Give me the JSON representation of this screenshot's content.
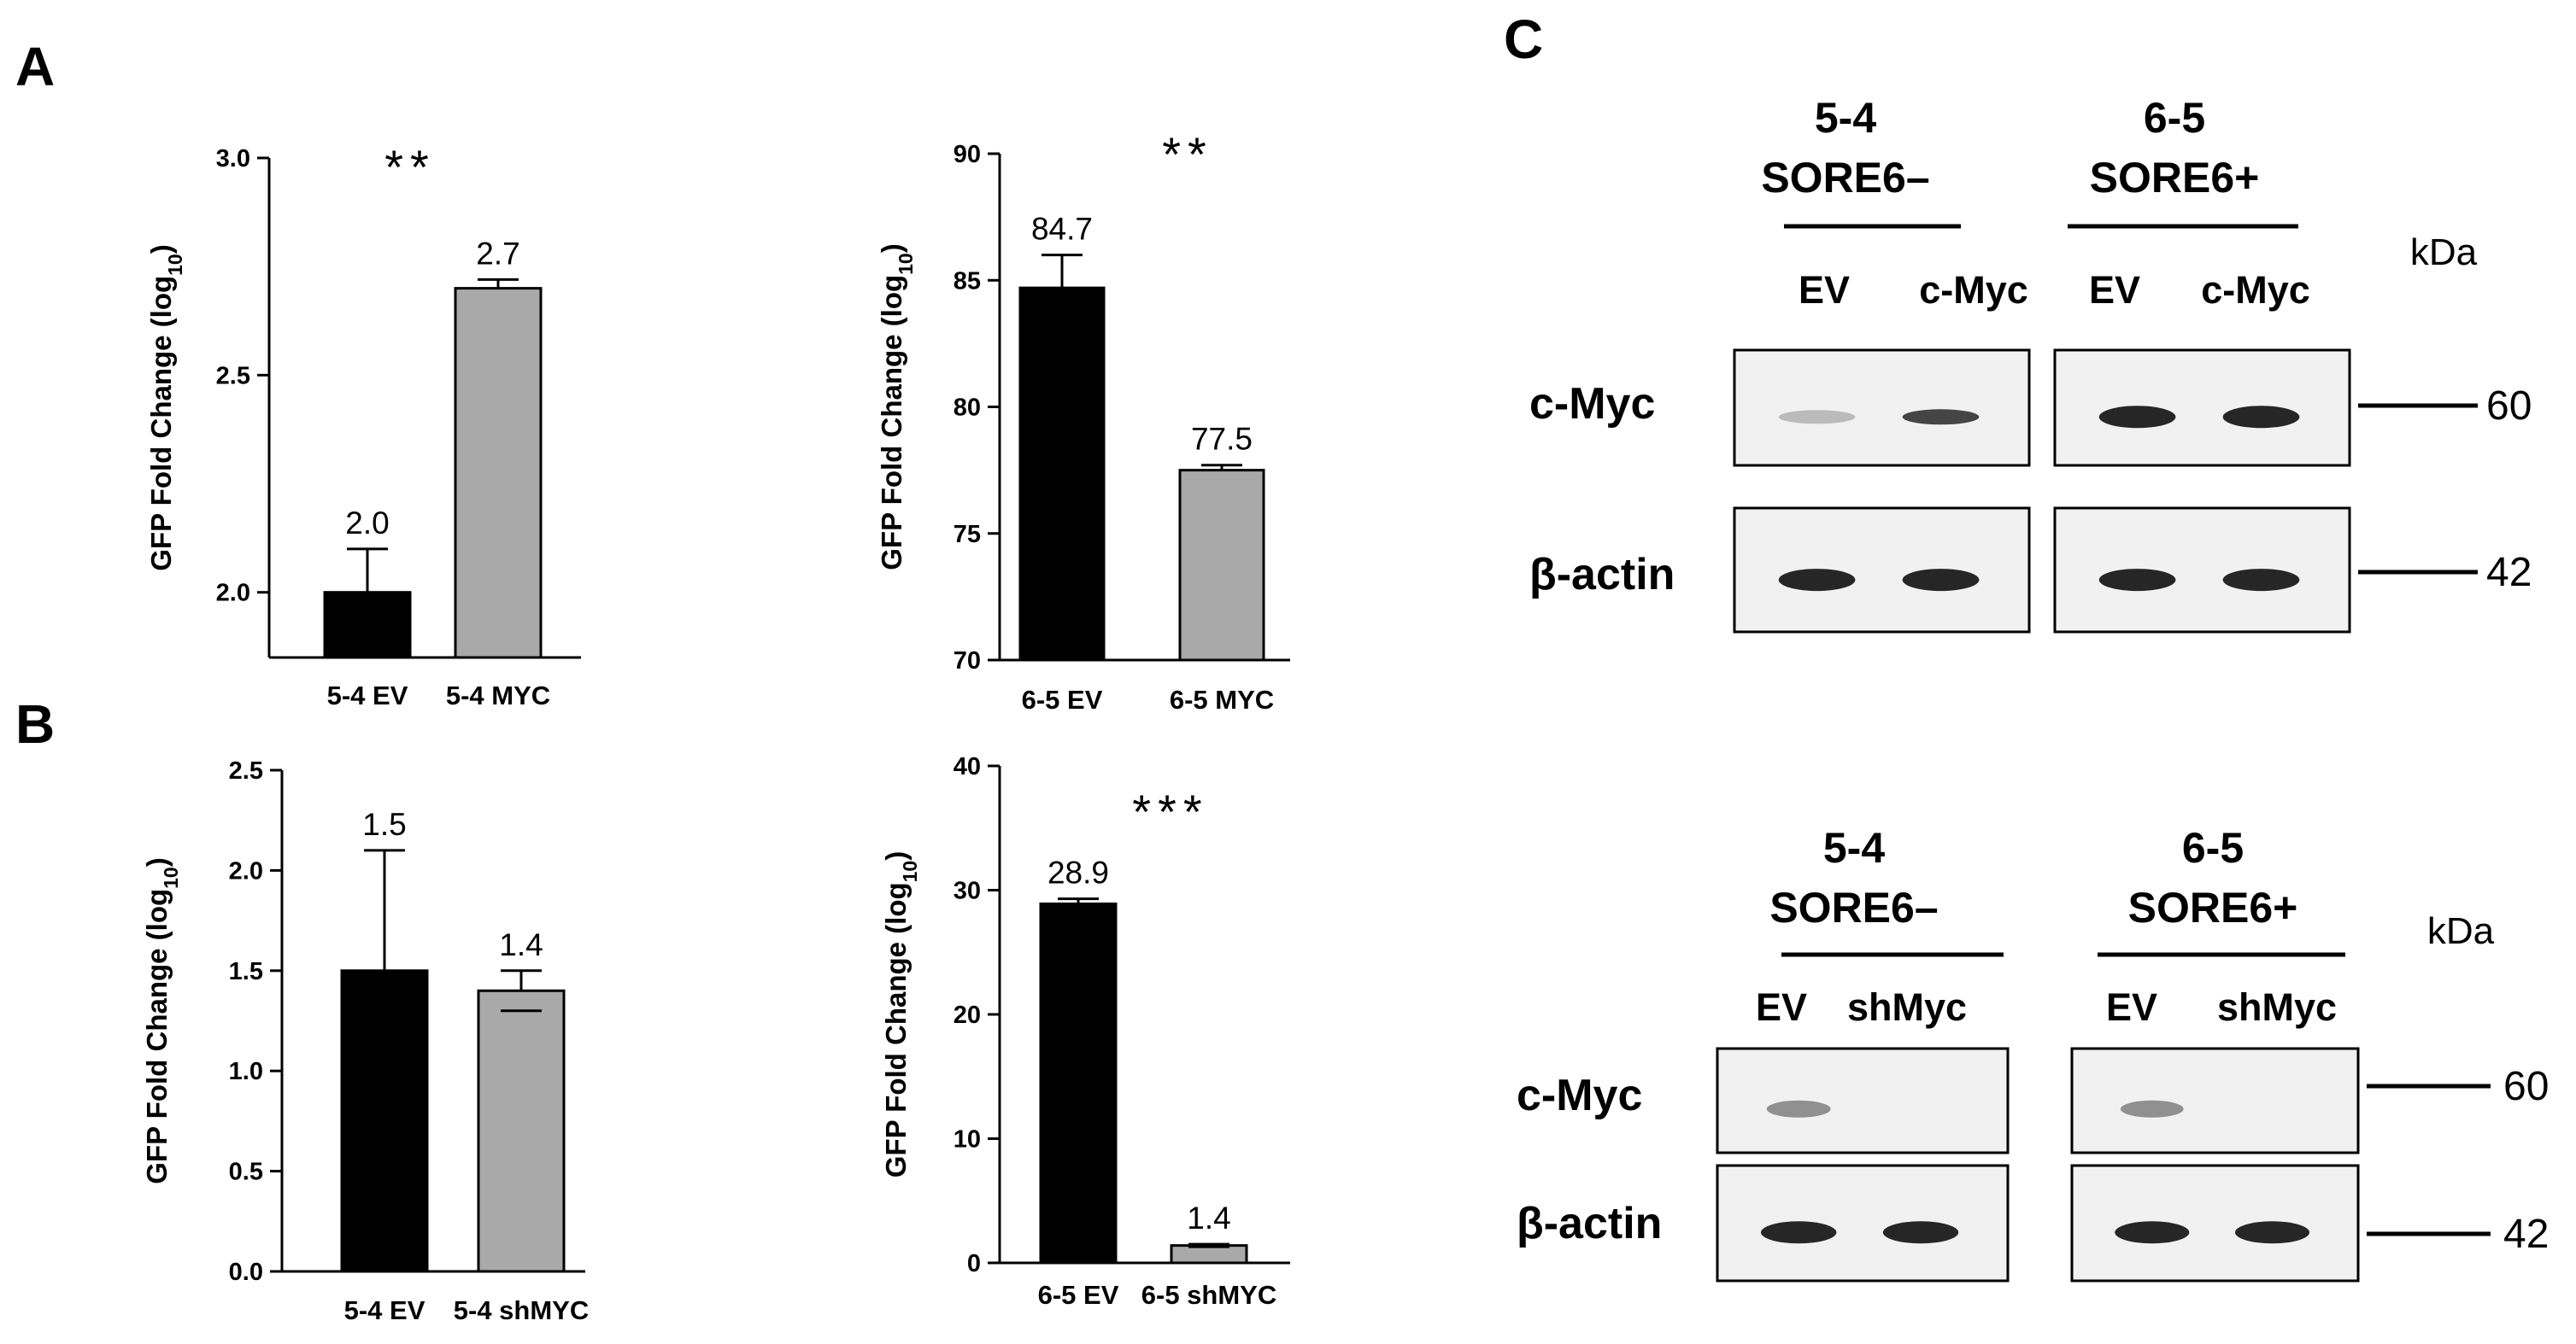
{
  "panels": {
    "A": "A",
    "B": "B",
    "C": "C"
  },
  "colors": {
    "ev_bar": "#000000",
    "myc_bar": "#a9a9a9",
    "blot_bg": "#f1f1f1",
    "band": "#1a1a1a"
  },
  "chart_data": [
    {
      "id": "A-left",
      "type": "bar",
      "ylabel_main": "GFP Fold Change (log",
      "ylabel_sub": "10",
      "ylabel_close": ")",
      "categories": [
        "5-4 EV",
        "5-4 MYC"
      ],
      "values": [
        2.0,
        2.7
      ],
      "errors": [
        0.1,
        0.02
      ],
      "value_labels": [
        "2.0",
        "2.7"
      ],
      "ylim": [
        1.85,
        3.0
      ],
      "yticks": [
        2.0,
        2.5,
        3.0
      ],
      "ytick_labels": [
        "2.0",
        "2.5",
        "3.0"
      ],
      "significance": "**"
    },
    {
      "id": "A-right",
      "type": "bar",
      "ylabel_main": "GFP Fold Change (log",
      "ylabel_sub": "10",
      "ylabel_close": ")",
      "categories": [
        "6-5 EV",
        "6-5 MYC"
      ],
      "values": [
        84.7,
        77.5
      ],
      "errors": [
        1.3,
        0.2
      ],
      "value_labels": [
        "84.7",
        "77.5"
      ],
      "ylim": [
        70,
        90
      ],
      "yticks": [
        70,
        75,
        80,
        85,
        90
      ],
      "ytick_labels": [
        "70",
        "75",
        "80",
        "85",
        "90"
      ],
      "significance": "**"
    },
    {
      "id": "B-left",
      "type": "bar",
      "ylabel_main": "GFP Fold Change (log",
      "ylabel_sub": "10",
      "ylabel_close": ")",
      "categories": [
        "5-4 EV",
        "5-4 shMYC"
      ],
      "values": [
        1.5,
        1.4
      ],
      "errors": [
        0.6,
        0.1
      ],
      "value_labels": [
        "1.5",
        "1.4"
      ],
      "ylim": [
        0,
        2.5
      ],
      "yticks": [
        0.0,
        0.5,
        1.0,
        1.5,
        2.0,
        2.5
      ],
      "ytick_labels": [
        "0.0",
        "0.5",
        "1.0",
        "1.5",
        "2.0",
        "2.5"
      ],
      "significance": ""
    },
    {
      "id": "B-right",
      "type": "bar",
      "ylabel_main": "GFP Fold Change (log",
      "ylabel_sub": "10",
      "ylabel_close": ")",
      "categories": [
        "6-5 EV",
        "6-5 shMYC"
      ],
      "values": [
        28.9,
        1.4
      ],
      "errors": [
        0.4,
        0.1
      ],
      "value_labels": [
        "28.9",
        "1.4"
      ],
      "ylim": [
        0,
        40
      ],
      "yticks": [
        0,
        10,
        20,
        30,
        40
      ],
      "ytick_labels": [
        "0",
        "10",
        "20",
        "30",
        "40"
      ],
      "significance": "***"
    }
  ],
  "blots": [
    {
      "id": "blot-top",
      "groups": [
        {
          "title": "5-4",
          "subtitle": "SORE6–",
          "lanes": [
            "EV",
            "c-Myc"
          ]
        },
        {
          "title": "6-5",
          "subtitle": "SORE6+",
          "lanes": [
            "EV",
            "c-Myc"
          ]
        }
      ],
      "kda_label": "kDa",
      "rows": [
        {
          "label": "c-Myc",
          "mw": "60"
        },
        {
          "label": "β-actin",
          "mw": "42"
        }
      ]
    },
    {
      "id": "blot-bottom",
      "groups": [
        {
          "title": "5-4",
          "subtitle": "SORE6–",
          "lanes": [
            "EV",
            "shMyc"
          ]
        },
        {
          "title": "6-5",
          "subtitle": "SORE6+",
          "lanes": [
            "EV",
            "shMyc"
          ]
        }
      ],
      "kda_label": "kDa",
      "rows": [
        {
          "label": "c-Myc",
          "mw": "60"
        },
        {
          "label": "β-actin",
          "mw": "42"
        }
      ]
    }
  ]
}
